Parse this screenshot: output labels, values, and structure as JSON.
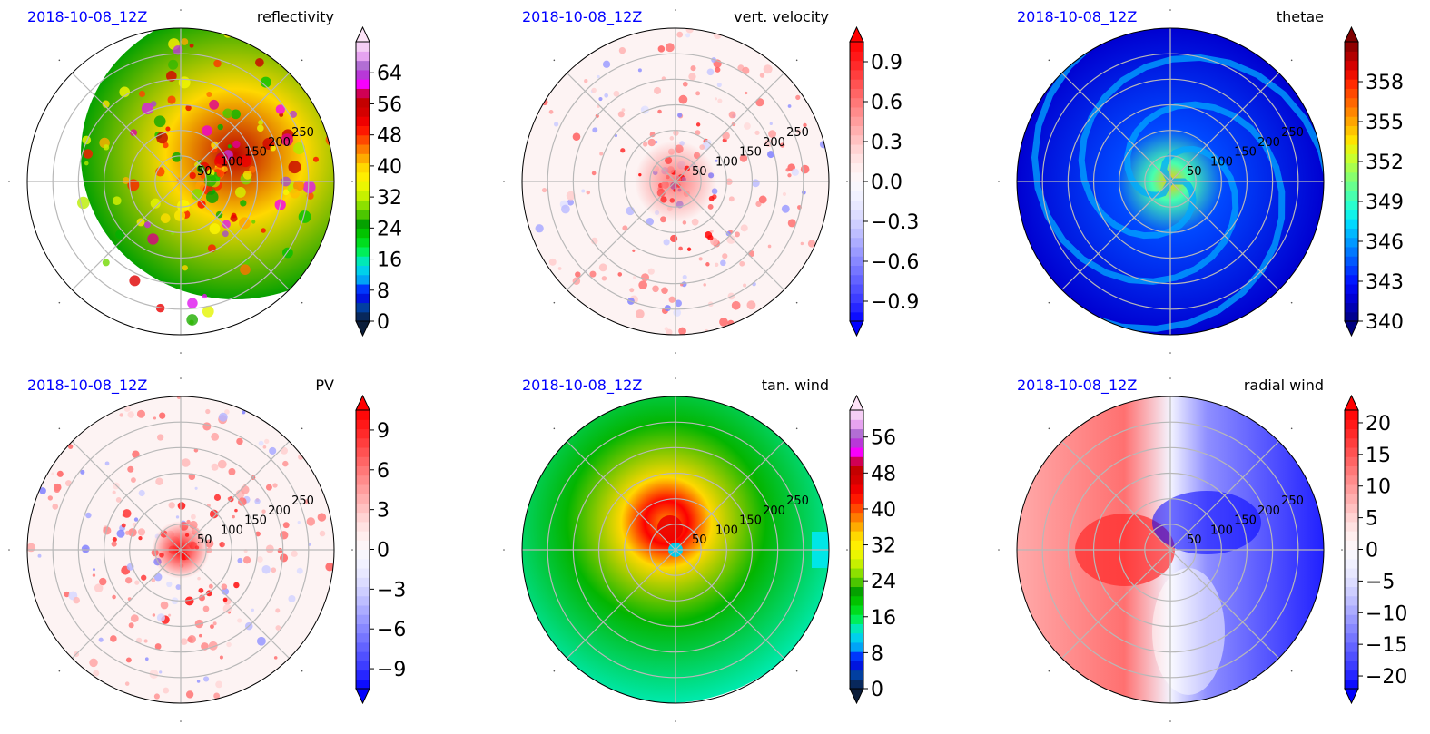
{
  "colors": {
    "date_label": "#0000ff",
    "grid": "#b8b8b8"
  },
  "chart_data": [
    {
      "type": "heatmap",
      "projection": "polar",
      "date": "2018-10-08_12Z",
      "title": "reflectivity",
      "ring_labels": [
        "50",
        "100",
        "150",
        "200",
        "250"
      ],
      "rlim": [
        0,
        300
      ],
      "colormap": "nws-reflectivity",
      "colorbar": {
        "range": [
          0,
          72
        ],
        "extend": "both",
        "ticks": [
          0,
          8,
          16,
          24,
          32,
          40,
          48,
          56,
          64
        ],
        "tick_labels": [
          "0",
          "8",
          "16",
          "24",
          "32",
          "40",
          "48",
          "56",
          "64"
        ]
      },
      "grid": true
    },
    {
      "type": "heatmap",
      "projection": "polar",
      "date": "2018-10-08_12Z",
      "title": "vert. velocity",
      "ring_labels": [
        "50",
        "100",
        "150",
        "200",
        "250"
      ],
      "rlim": [
        0,
        300
      ],
      "colormap": "bwr",
      "colorbar": {
        "range": [
          -1.05,
          1.05
        ],
        "extend": "both",
        "ticks": [
          -0.9,
          -0.6,
          -0.3,
          0.0,
          0.3,
          0.6,
          0.9
        ],
        "tick_labels": [
          "−0.9",
          "−0.6",
          "−0.3",
          "0.0",
          "0.3",
          "0.6",
          "0.9"
        ]
      },
      "grid": true
    },
    {
      "type": "heatmap",
      "projection": "polar",
      "date": "2018-10-08_12Z",
      "title": "thetae",
      "ring_labels": [
        "50",
        "100",
        "150",
        "200",
        "250"
      ],
      "rlim": [
        0,
        300
      ],
      "colormap": "jet",
      "colorbar": {
        "range": [
          340,
          361
        ],
        "extend": "both",
        "ticks": [
          340,
          343,
          346,
          349,
          352,
          355,
          358
        ],
        "tick_labels": [
          "340",
          "343",
          "346",
          "349",
          "352",
          "355",
          "358"
        ]
      },
      "grid": true
    },
    {
      "type": "heatmap",
      "projection": "polar",
      "date": "2018-10-08_12Z",
      "title": "PV",
      "ring_labels": [
        "50",
        "100",
        "150",
        "200",
        "250"
      ],
      "rlim": [
        0,
        300
      ],
      "colormap": "bwr",
      "colorbar": {
        "range": [
          -10.5,
          10.5
        ],
        "extend": "both",
        "ticks": [
          -9,
          -6,
          -3,
          0,
          3,
          6,
          9
        ],
        "tick_labels": [
          "−9",
          "−6",
          "−3",
          "0",
          "3",
          "6",
          "9"
        ]
      },
      "grid": true
    },
    {
      "type": "heatmap",
      "projection": "polar",
      "date": "2018-10-08_12Z",
      "title": "tan. wind",
      "ring_labels": [
        "50",
        "100",
        "150",
        "200",
        "250"
      ],
      "rlim": [
        0,
        300
      ],
      "colormap": "nws-reflectivity",
      "colorbar": {
        "range": [
          0,
          62
        ],
        "extend": "both",
        "ticks": [
          0,
          8,
          16,
          24,
          32,
          40,
          48,
          56
        ],
        "tick_labels": [
          "0",
          "8",
          "16",
          "24",
          "32",
          "40",
          "48",
          "56"
        ]
      },
      "grid": true
    },
    {
      "type": "heatmap",
      "projection": "polar",
      "date": "2018-10-08_12Z",
      "title": "radial wind",
      "ring_labels": [
        "50",
        "100",
        "150",
        "200",
        "250"
      ],
      "rlim": [
        0,
        300
      ],
      "colormap": "bwr",
      "colorbar": {
        "range": [
          -22,
          22
        ],
        "extend": "both",
        "ticks": [
          -20,
          -15,
          -10,
          -5,
          0,
          5,
          10,
          15,
          20
        ],
        "tick_labels": [
          "−20",
          "−15",
          "−10",
          "−5",
          "0",
          "5",
          "10",
          "15",
          "20"
        ]
      },
      "grid": true
    }
  ]
}
